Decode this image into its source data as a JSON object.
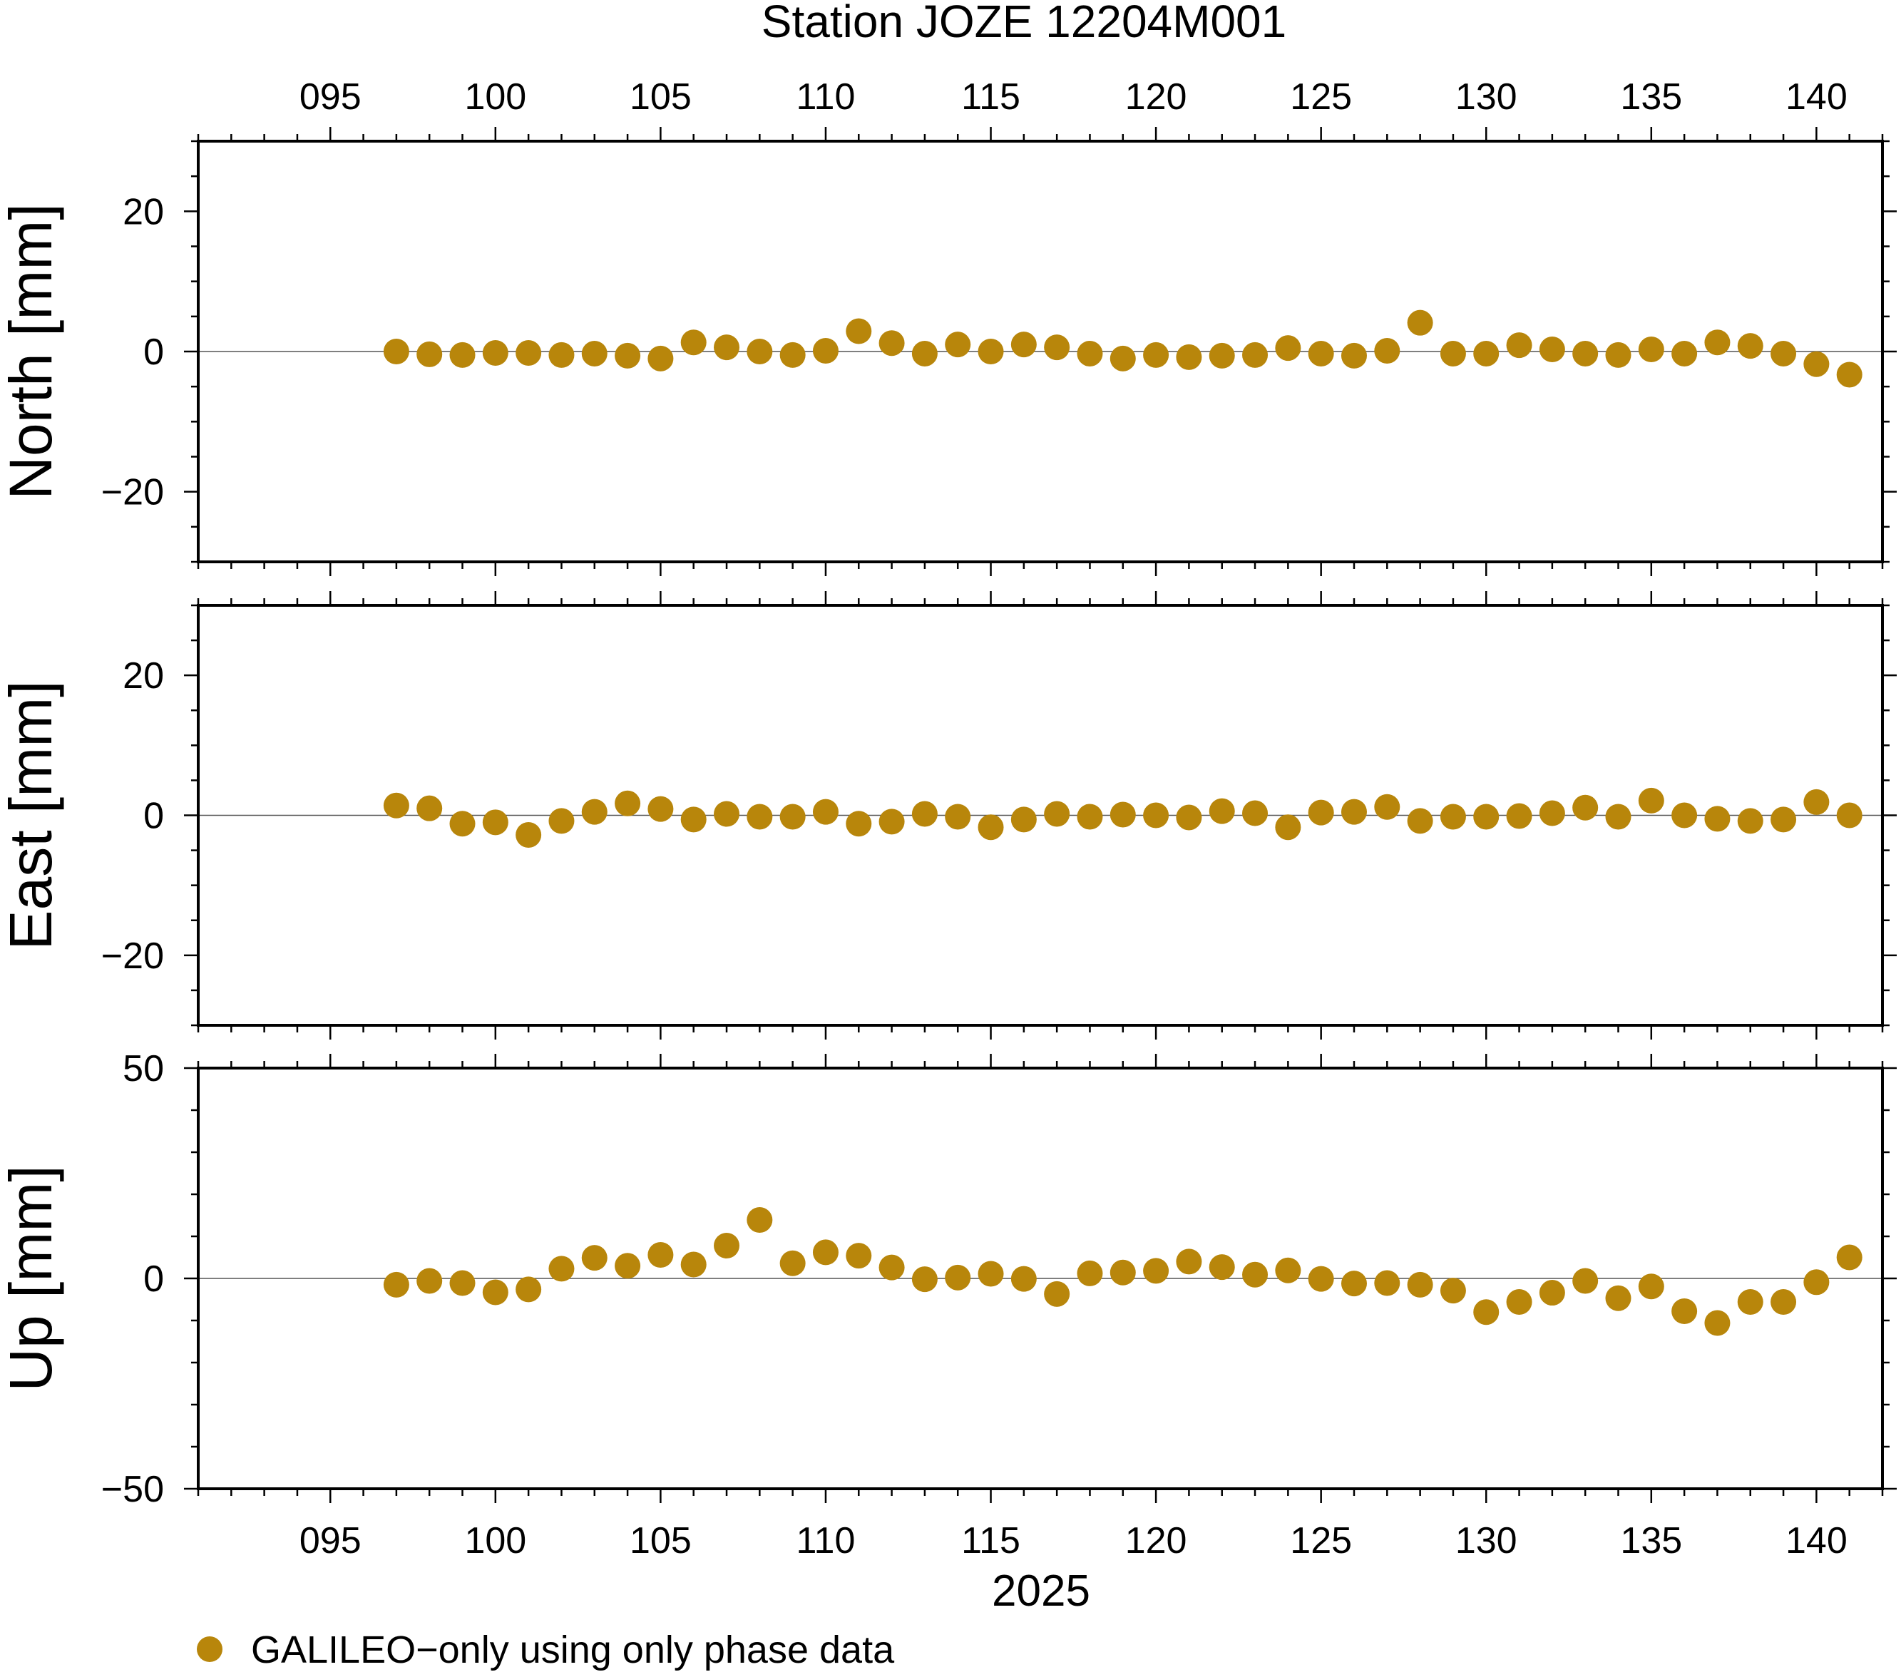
{
  "chart_data": {
    "type": "scatter",
    "title": "Station JOZE 12204M001",
    "xlabel": "2025",
    "xlim": [
      91,
      142
    ],
    "x_ticks": [
      95,
      100,
      105,
      110,
      115,
      120,
      125,
      130,
      135,
      140
    ],
    "x_tick_labels": [
      "095",
      "100",
      "105",
      "110",
      "115",
      "120",
      "125",
      "130",
      "135",
      "140"
    ],
    "x": [
      97,
      98,
      99,
      100,
      101,
      102,
      103,
      104,
      105,
      106,
      107,
      108,
      109,
      110,
      111,
      112,
      113,
      114,
      115,
      116,
      117,
      118,
      119,
      120,
      121,
      122,
      123,
      124,
      125,
      126,
      127,
      128,
      129,
      130,
      131,
      132,
      133,
      134,
      135,
      136,
      137,
      138,
      139,
      140,
      141
    ],
    "marker_color": "#b8860b",
    "legend": {
      "label": "GALILEO−only using only phase data",
      "position": "bottom-left"
    },
    "panels": [
      {
        "ylabel": "North [mm]",
        "ylim": [
          -30,
          30
        ],
        "y_ticks": [
          -20,
          0,
          20
        ],
        "y_tick_labels": [
          "−20",
          "0",
          "20"
        ],
        "values": [
          0,
          -0.4,
          -0.5,
          -0.2,
          -0.2,
          -0.5,
          -0.3,
          -0.6,
          -1.0,
          1.3,
          0.6,
          0.0,
          -0.5,
          0.1,
          2.9,
          1.2,
          -0.3,
          1.0,
          0.0,
          1.0,
          0.6,
          -0.3,
          -1.0,
          -0.5,
          -0.8,
          -0.6,
          -0.5,
          0.5,
          -0.3,
          -0.6,
          0.1,
          4.1,
          -0.3,
          -0.3,
          0.9,
          0.3,
          -0.3,
          -0.5,
          0.3,
          -0.3,
          1.3,
          0.8,
          -0.3,
          -1.8,
          -3.3
        ]
      },
      {
        "ylabel": "East [mm]",
        "ylim": [
          -30,
          30
        ],
        "y_ticks": [
          -20,
          0,
          20
        ],
        "y_tick_labels": [
          "−20",
          "0",
          "20"
        ],
        "values": [
          1.4,
          1.0,
          -1.2,
          -1.0,
          -2.8,
          -0.8,
          0.5,
          1.7,
          0.9,
          -0.6,
          0.2,
          -0.2,
          -0.2,
          0.5,
          -1.2,
          -0.9,
          0.2,
          -0.2,
          -1.7,
          -0.6,
          0.2,
          -0.2,
          0.1,
          0.0,
          -0.3,
          0.6,
          0.3,
          -1.7,
          0.4,
          0.5,
          1.2,
          -0.8,
          -0.2,
          -0.2,
          -0.1,
          0.3,
          1.1,
          -0.2,
          2.1,
          0.0,
          -0.5,
          -0.8,
          -0.6,
          1.9,
          0.0
        ]
      },
      {
        "ylabel": "Up [mm]",
        "ylim": [
          -50,
          50
        ],
        "y_ticks": [
          -50,
          0,
          50
        ],
        "y_tick_labels": [
          "−50",
          "0",
          "50"
        ],
        "values": [
          -1.5,
          -0.6,
          -1.1,
          -3.3,
          -2.6,
          2.3,
          4.9,
          3.0,
          5.6,
          3.3,
          7.8,
          13.9,
          3.6,
          6.2,
          5.4,
          2.6,
          -0.2,
          0.2,
          1.1,
          -0.1,
          -3.7,
          1.2,
          1.4,
          1.8,
          4.0,
          2.7,
          0.9,
          1.9,
          -0.1,
          -1.2,
          -1.1,
          -1.5,
          -2.9,
          -8.0,
          -5.6,
          -3.4,
          -0.6,
          -4.7,
          -1.9,
          -7.8,
          -10.6,
          -5.6,
          -5.6,
          -0.9,
          5.0
        ]
      }
    ]
  }
}
